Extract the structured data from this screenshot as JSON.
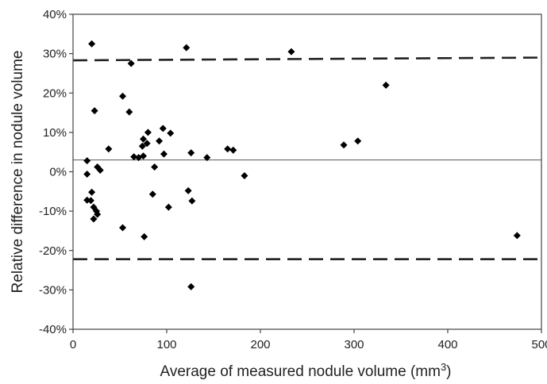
{
  "chart_data": {
    "type": "scatter",
    "title": "",
    "xlabel": "Average of measured nodule volume (mm",
    "xlabel_sup": "3",
    "xlabel_close": ")",
    "ylabel": "Relative difference in nodule volume",
    "xlim": [
      0,
      500
    ],
    "ylim": [
      -40,
      40
    ],
    "x_ticks": [
      0,
      100,
      200,
      300,
      400,
      500
    ],
    "x_tick_labels": [
      "0",
      "100",
      "200",
      "300",
      "400",
      "500"
    ],
    "y_ticks": [
      40,
      30,
      20,
      10,
      0,
      -10,
      -20,
      -30,
      -40
    ],
    "y_tick_labels": [
      "40%",
      "30%",
      "20%",
      "10%",
      "0%",
      "-10%",
      "-20%",
      "-30%",
      "-40%"
    ],
    "grid": false,
    "mean_line": 3,
    "limits_of_agreement": {
      "upper": {
        "x": [
          0,
          500
        ],
        "y": [
          28.3,
          29.0
        ]
      },
      "lower": {
        "x": [
          0,
          500
        ],
        "y": [
          -22.2,
          -22.2
        ]
      }
    },
    "points": [
      {
        "x": 20,
        "y": 32.5
      },
      {
        "x": 62,
        "y": 27.5
      },
      {
        "x": 121,
        "y": 31.5
      },
      {
        "x": 233,
        "y": 30.5
      },
      {
        "x": 334,
        "y": 22
      },
      {
        "x": 53,
        "y": 19.2
      },
      {
        "x": 23,
        "y": 15.5
      },
      {
        "x": 60,
        "y": 15.2
      },
      {
        "x": 96,
        "y": 11
      },
      {
        "x": 80,
        "y": 10
      },
      {
        "x": 104,
        "y": 9.8
      },
      {
        "x": 75,
        "y": 8.3
      },
      {
        "x": 92,
        "y": 7.8
      },
      {
        "x": 79,
        "y": 7.2
      },
      {
        "x": 304,
        "y": 7.8
      },
      {
        "x": 289,
        "y": 6.8
      },
      {
        "x": 74,
        "y": 6.5
      },
      {
        "x": 38,
        "y": 5.8
      },
      {
        "x": 165,
        "y": 5.8
      },
      {
        "x": 171,
        "y": 5.5
      },
      {
        "x": 126,
        "y": 4.8
      },
      {
        "x": 97,
        "y": 4.5
      },
      {
        "x": 65,
        "y": 3.8
      },
      {
        "x": 70,
        "y": 3.6
      },
      {
        "x": 75,
        "y": 4
      },
      {
        "x": 143,
        "y": 3.6
      },
      {
        "x": 15,
        "y": 2.8
      },
      {
        "x": 26,
        "y": 1.2
      },
      {
        "x": 87,
        "y": 1.2
      },
      {
        "x": 29,
        "y": 0.4
      },
      {
        "x": 15,
        "y": -0.6
      },
      {
        "x": 183,
        "y": -1
      },
      {
        "x": 123,
        "y": -4.8
      },
      {
        "x": 20,
        "y": -5.2
      },
      {
        "x": 85,
        "y": -5.7
      },
      {
        "x": 15,
        "y": -7.2
      },
      {
        "x": 19,
        "y": -7.3
      },
      {
        "x": 127,
        "y": -7.4
      },
      {
        "x": 22,
        "y": -9
      },
      {
        "x": 102,
        "y": -9
      },
      {
        "x": 25,
        "y": -10
      },
      {
        "x": 26,
        "y": -10.8
      },
      {
        "x": 22,
        "y": -12
      },
      {
        "x": 53,
        "y": -14.2
      },
      {
        "x": 76,
        "y": -16.5
      },
      {
        "x": 474,
        "y": -16.2
      },
      {
        "x": 126,
        "y": -29.2
      }
    ]
  }
}
